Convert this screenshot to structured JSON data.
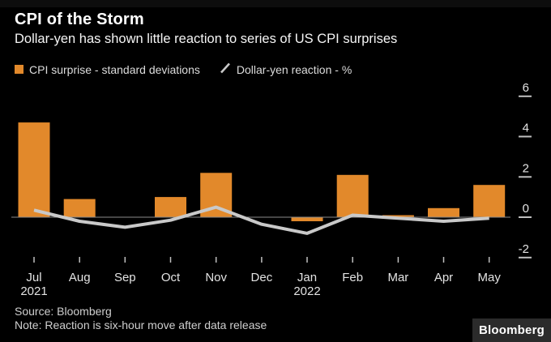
{
  "header": {
    "title": "CPI of the Storm",
    "subtitle": "Dollar-yen has shown little reaction to series of US CPI surprises"
  },
  "legend": {
    "bar_label": "CPI surprise - standard deviations",
    "line_label": "Dollar-yen reaction - %"
  },
  "footer": {
    "source": "Source: Bloomberg",
    "note": "Note: Reaction is six-hour move after data release",
    "brand": "Bloomberg"
  },
  "colors": {
    "background": "#000000",
    "bar": "#E2892B",
    "line": "#C9C9C9",
    "axis_text": "#E3E3E3",
    "tick": "#BFBFBF",
    "grid": "#8A8A8A"
  },
  "chart_data": {
    "type": "bar",
    "title": "CPI of the Storm",
    "xlabel": "",
    "ylabel": "",
    "categories": [
      "Jul",
      "Aug",
      "Sep",
      "Oct",
      "Nov",
      "Dec",
      "Jan",
      "Feb",
      "Mar",
      "Apr",
      "May"
    ],
    "category_year_labels": [
      "2021",
      "",
      "",
      "",
      "",
      "",
      "2022",
      "",
      "",
      "",
      ""
    ],
    "series": [
      {
        "name": "CPI surprise - standard deviations",
        "type": "bar",
        "color": "#E2892B",
        "values": [
          4.7,
          0.9,
          0,
          1.0,
          2.2,
          0,
          -0.2,
          2.1,
          0.1,
          0.45,
          1.6
        ]
      },
      {
        "name": "Dollar-yen reaction - %",
        "type": "line",
        "color": "#C9C9C9",
        "values": [
          0.35,
          -0.2,
          -0.5,
          -0.15,
          0.5,
          -0.35,
          -0.8,
          0.1,
          -0.05,
          -0.2,
          -0.05
        ]
      }
    ],
    "yticks": [
      6,
      4,
      2,
      0,
      -2
    ],
    "ylim": [
      -2.3,
      6.95
    ],
    "grid": false,
    "legend_position": "top"
  }
}
